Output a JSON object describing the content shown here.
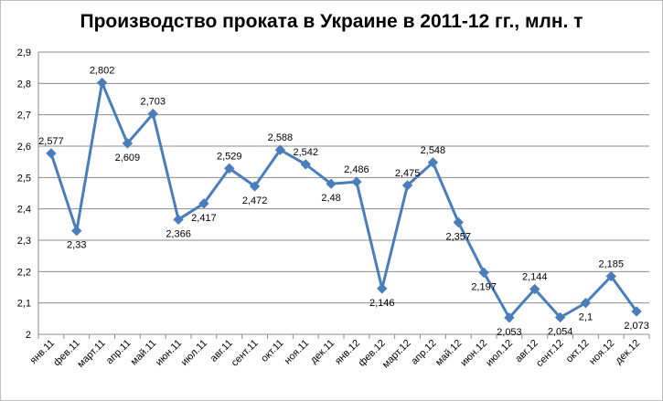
{
  "chart_data": {
    "type": "line",
    "title": "Производство проката в Украине в 2011-12 гг., млн. т",
    "xlabel": "",
    "ylabel": "",
    "categories": [
      "янв.11",
      "фев.11",
      "март.11",
      "апр.11",
      "май.11",
      "июн.11",
      "июл.11",
      "авг.11",
      "сент.11",
      "окт.11",
      "ноя.11",
      "дек.11",
      "янв.12",
      "фев.12",
      "март.12",
      "апр.12",
      "май.12",
      "июн.12",
      "июл.12",
      "авг.12",
      "сент.12",
      "окт.12",
      "ноя.12",
      "дек.12"
    ],
    "series": [
      {
        "values": [
          2.577,
          2.33,
          2.802,
          2.609,
          2.703,
          2.366,
          2.417,
          2.529,
          2.472,
          2.588,
          2.542,
          2.48,
          2.486,
          2.146,
          2.475,
          2.548,
          2.357,
          2.197,
          2.053,
          2.144,
          2.054,
          2.1,
          2.185,
          2.073
        ],
        "color": "#4a7ebb"
      }
    ],
    "data_labels": [
      "2,577",
      "2,33",
      "2,802",
      "2,609",
      "2,703",
      "2,366",
      "2,417",
      "2,529",
      "2,472",
      "2,588",
      "2,542",
      "2,48",
      "2,486",
      "2,146",
      "2,475",
      "2,548",
      "2,357",
      "2,197",
      "2,053",
      "2,144",
      "2,054",
      "2,1",
      "2,185",
      "2,073"
    ],
    "ylim": [
      2,
      2.9
    ],
    "yticks": [
      2,
      2.1,
      2.2,
      2.3,
      2.4,
      2.5,
      2.6,
      2.7,
      2.8,
      2.9
    ],
    "ytick_labels": [
      "2",
      "2,1",
      "2,2",
      "2,3",
      "2,4",
      "2,5",
      "2,6",
      "2,7",
      "2,8",
      "2,9"
    ],
    "grid": true,
    "legend": "none",
    "gridline_color": "#8c8c8c",
    "marker": "diamond"
  }
}
